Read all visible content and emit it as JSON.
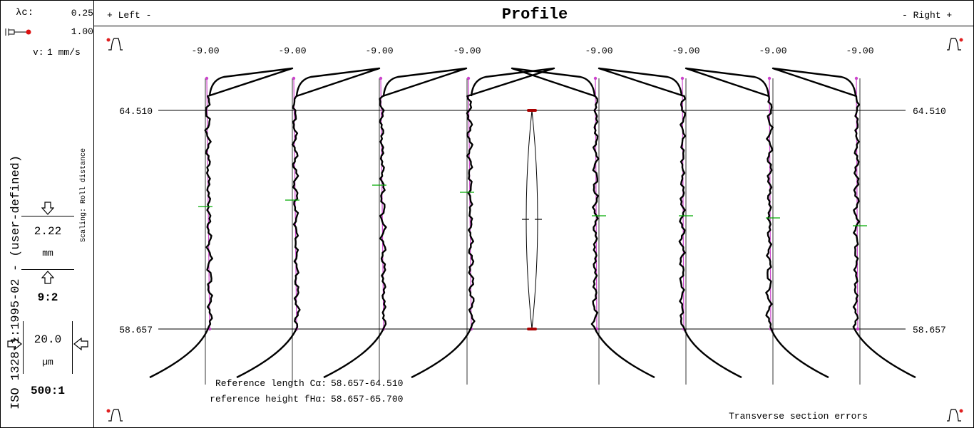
{
  "header": {
    "lambda_label": "λc:",
    "lambda_value": "0.25",
    "filter_value": "1.00",
    "speed_label": "v:",
    "speed_value": "1 mm/s",
    "left_label": "+ Left -",
    "title": "Profile",
    "right_label": "- Right +"
  },
  "sidebar": {
    "standard": "ISO 1328-1:1995-02 - (user-defined)",
    "scaling_note": "Scaling: Roll distance",
    "horizontal_scale_value": "2.22",
    "horizontal_scale_unit": "mm",
    "horizontal_ratio": "9:2",
    "vertical_scale_value": "20.0",
    "vertical_scale_unit": "µm",
    "vertical_ratio": "500:1"
  },
  "footer": {
    "ref_length_label": "Reference length Cα:",
    "ref_length_value": "58.657-64.510",
    "ref_height_label": "reference height fHα:",
    "ref_height_value": "58.657-65.700",
    "section_note": "Transverse section errors"
  },
  "icons": [
    "tooth-icon",
    "filter-slider-icon",
    "arrow-down-icon",
    "arrow-up-icon",
    "arrow-right-icon",
    "arrow-left-icon"
  ],
  "colors": {
    "profile": "#000000",
    "tolerance": "#cc44cc",
    "marker": "#00aa00",
    "endpoint": "#aa0000"
  },
  "chart_data": {
    "type": "line",
    "title": "Profile",
    "reference_levels": [
      64.51,
      58.657
    ],
    "reference_labels": [
      "64.510",
      "58.657"
    ],
    "left_teeth": [
      {
        "label": "-9.00"
      },
      {
        "label": "-9.00"
      },
      {
        "label": "-9.00"
      },
      {
        "label": "-9.00"
      }
    ],
    "right_teeth": [
      {
        "label": "-9.00"
      },
      {
        "label": "-9.00"
      },
      {
        "label": "-9.00"
      },
      {
        "label": "-9.00"
      }
    ]
  }
}
